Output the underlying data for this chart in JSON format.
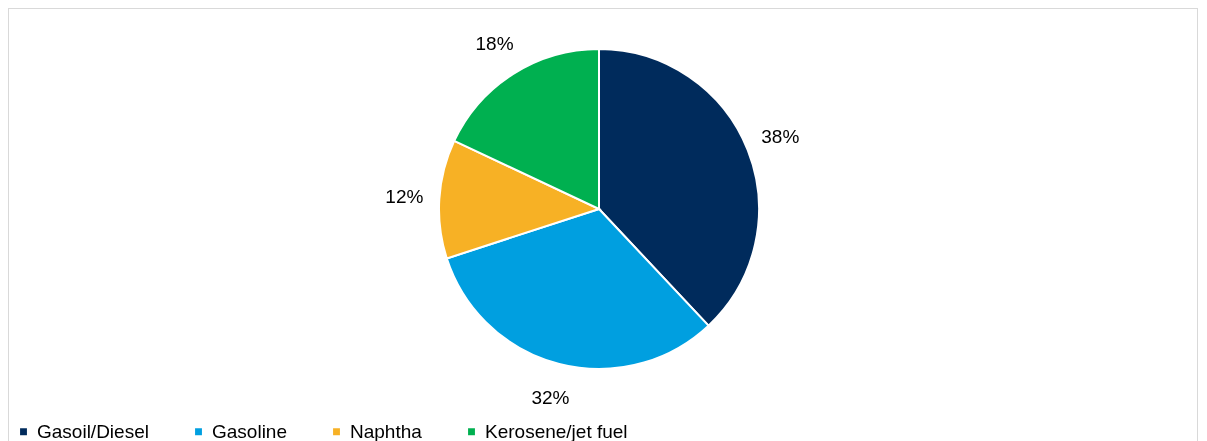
{
  "chart_data": {
    "type": "pie",
    "categories": [
      "Gasoil/Diesel",
      "Gasoline",
      "Naphtha",
      "Kerosene/jet fuel"
    ],
    "values": [
      38,
      32,
      12,
      18
    ],
    "colors": [
      "#002b5c",
      "#009fe0",
      "#f7b125",
      "#00b050"
    ],
    "value_labels": [
      "38%",
      "32%",
      "12%",
      "18%"
    ],
    "legend": "bottom"
  }
}
